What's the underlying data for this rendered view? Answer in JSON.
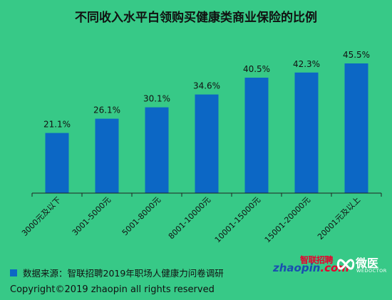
{
  "chart_data": {
    "type": "bar",
    "title": "不同收入水平白领购买健康类商业保险的比例",
    "categories": [
      "3000元及以下",
      "3001-5000元",
      "5001-8000元",
      "8001-10000元",
      "10001-15000元",
      "15001-20000元",
      "20001元及以上"
    ],
    "values": [
      21.1,
      26.1,
      30.1,
      34.6,
      40.5,
      42.3,
      45.5
    ],
    "value_labels": [
      "21.1%",
      "26.1%",
      "30.1%",
      "34.6%",
      "40.5%",
      "42.3%",
      "45.5%"
    ],
    "xlabel": "",
    "ylabel": "",
    "ylim": [
      0,
      50
    ],
    "grid": false,
    "legend": "none",
    "bar_color": "#0c67c5"
  },
  "source": {
    "text": "数据来源：智联招聘2019年职场人健康力问卷调研"
  },
  "copyright": "Copyright©2019 zhaopin all rights reserved",
  "logos": {
    "zhaopin_cn": "智联招聘",
    "zhaopin_en_main": "zhaopin",
    "zhaopin_en_suffix": ".com",
    "weiyi_cn": "微医",
    "weiyi_en": "WEDOCTOR"
  },
  "colors": {
    "background": "#37c987",
    "bar": "#0c67c5",
    "text": "#111111"
  }
}
